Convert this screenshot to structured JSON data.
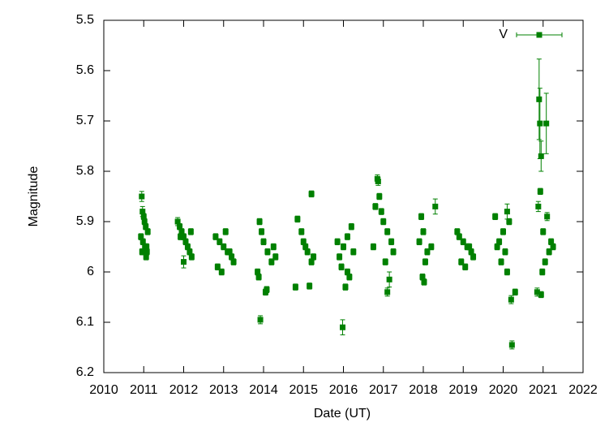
{
  "chart_data": {
    "type": "scatter",
    "x_label": "Date (UT)",
    "y_label": "Magnitude",
    "xlim": [
      2010,
      2022
    ],
    "xticks": [
      2010,
      2011,
      2012,
      2013,
      2014,
      2015,
      2016,
      2017,
      2018,
      2019,
      2020,
      2021,
      2022
    ],
    "ylim": [
      6.2,
      5.5
    ],
    "yticks": [
      5.5,
      5.6,
      5.7,
      5.8,
      5.9,
      6,
      6.1,
      6.2
    ],
    "legend": "top-right",
    "series": [
      {
        "name": "V",
        "color": "#008000",
        "x": [
          2010.95,
          2010.97,
          2011.0,
          2011.02,
          2011.05,
          2010.93,
          2010.98,
          2011.03,
          2011.08,
          2011.06,
          2010.96,
          2011.1,
          2011.07,
          2011.85,
          2011.9,
          2011.95,
          2012.0,
          2012.05,
          2012.1,
          2012.15,
          2012.2,
          2012.0,
          2011.92,
          2012.18,
          2012.8,
          2012.9,
          2013.0,
          2013.1,
          2013.2,
          2013.25,
          2012.95,
          2013.05,
          2013.15,
          2012.85,
          2013.9,
          2013.95,
          2014.0,
          2014.1,
          2014.2,
          2013.85,
          2013.88,
          2014.05,
          2014.08,
          2013.92,
          2014.25,
          2014.3,
          2014.85,
          2014.95,
          2015.0,
          2015.1,
          2015.2,
          2014.8,
          2015.15,
          2015.2,
          2015.05,
          2015.25,
          2016.2,
          2016.1,
          2016.0,
          2015.9,
          2015.95,
          2016.15,
          2016.05,
          2015.98,
          2015.85,
          2016.25,
          2016.1,
          2016.85,
          2016.87,
          2016.9,
          2016.8,
          2016.95,
          2017.0,
          2017.1,
          2017.2,
          2017.25,
          2017.05,
          2017.1,
          2017.15,
          2016.75,
          2017.95,
          2018.0,
          2017.9,
          2018.1,
          2018.05,
          2017.98,
          2018.02,
          2018.3,
          2018.2,
          2018.85,
          2018.9,
          2019.0,
          2019.1,
          2019.2,
          2019.25,
          2018.95,
          2019.05,
          2019.15,
          2019.8,
          2020.1,
          2020.15,
          2020.0,
          2019.9,
          2020.05,
          2019.95,
          2020.1,
          2020.3,
          2020.2,
          2020.22,
          2019.85,
          2020.9,
          2020.92,
          2020.95,
          2020.93,
          2020.88,
          2021.1,
          2021.0,
          2021.2,
          2021.15,
          2021.05,
          2020.98,
          2020.85,
          2020.95,
          2021.08,
          2021.25
        ],
        "values": [
          5.85,
          5.88,
          5.89,
          5.9,
          5.91,
          5.93,
          5.94,
          5.95,
          5.96,
          5.97,
          5.96,
          5.92,
          5.95,
          5.9,
          5.91,
          5.92,
          5.93,
          5.94,
          5.95,
          5.96,
          5.97,
          5.98,
          5.93,
          5.92,
          5.93,
          5.94,
          5.95,
          5.96,
          5.97,
          5.98,
          6.0,
          5.92,
          5.96,
          5.99,
          5.9,
          5.92,
          5.94,
          5.96,
          5.98,
          6.0,
          6.01,
          6.04,
          6.035,
          6.095,
          5.95,
          5.97,
          5.895,
          5.92,
          5.94,
          5.96,
          5.98,
          6.03,
          6.028,
          5.845,
          5.95,
          5.97,
          5.91,
          5.93,
          5.95,
          5.97,
          5.99,
          6.01,
          6.03,
          6.11,
          5.94,
          5.96,
          6.0,
          5.815,
          5.82,
          5.85,
          5.87,
          5.88,
          5.9,
          5.92,
          5.94,
          5.96,
          5.98,
          6.04,
          6.015,
          5.95,
          5.89,
          5.92,
          5.94,
          5.96,
          5.98,
          6.01,
          6.02,
          5.87,
          5.95,
          5.92,
          5.93,
          5.94,
          5.95,
          5.96,
          5.97,
          5.98,
          5.99,
          5.95,
          5.89,
          5.88,
          5.9,
          5.92,
          5.94,
          5.96,
          5.98,
          6.0,
          6.04,
          6.055,
          6.145,
          5.95,
          5.657,
          5.705,
          5.77,
          5.84,
          5.87,
          5.89,
          5.92,
          5.94,
          5.96,
          5.98,
          6.0,
          6.04,
          6.045,
          5.705,
          5.95
        ],
        "errors": [
          0.01,
          0.01,
          0.006,
          0.006,
          0.006,
          0.006,
          0.006,
          0.006,
          0.006,
          0.006,
          0.006,
          0.006,
          0.006,
          0.008,
          0.006,
          0.006,
          0.006,
          0.006,
          0.006,
          0.006,
          0.006,
          0.012,
          0.006,
          0.006,
          0.006,
          0.006,
          0.006,
          0.006,
          0.006,
          0.006,
          0.006,
          0.006,
          0.006,
          0.006,
          0.006,
          0.006,
          0.006,
          0.006,
          0.006,
          0.006,
          0.006,
          0.006,
          0.006,
          0.008,
          0.006,
          0.006,
          0.006,
          0.006,
          0.006,
          0.006,
          0.006,
          0.006,
          0.006,
          0.006,
          0.006,
          0.006,
          0.006,
          0.006,
          0.006,
          0.006,
          0.006,
          0.006,
          0.006,
          0.015,
          0.006,
          0.006,
          0.006,
          0.008,
          0.008,
          0.006,
          0.006,
          0.006,
          0.006,
          0.006,
          0.006,
          0.006,
          0.006,
          0.008,
          0.015,
          0.006,
          0.006,
          0.006,
          0.006,
          0.006,
          0.006,
          0.006,
          0.006,
          0.015,
          0.006,
          0.006,
          0.006,
          0.006,
          0.006,
          0.006,
          0.006,
          0.006,
          0.006,
          0.006,
          0.006,
          0.015,
          0.006,
          0.006,
          0.006,
          0.006,
          0.006,
          0.006,
          0.006,
          0.008,
          0.008,
          0.006,
          0.08,
          0.07,
          0.03,
          0.006,
          0.01,
          0.008,
          0.006,
          0.006,
          0.006,
          0.006,
          0.006,
          0.008,
          0.006,
          0.06,
          0.006
        ]
      }
    ]
  }
}
